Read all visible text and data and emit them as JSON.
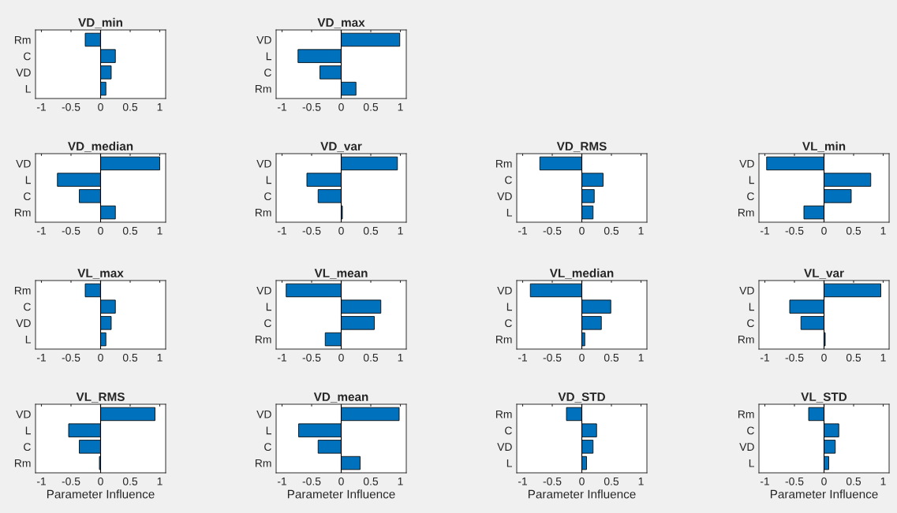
{
  "chart_data": [
    {
      "type": "bar",
      "orientation": "horizontal",
      "title": "VD_min",
      "categories": [
        "Rm",
        "C",
        "VD",
        "L"
      ],
      "values": [
        -0.26,
        0.25,
        0.18,
        0.09
      ],
      "color": "#0072bd",
      "xlim": [
        -1.1,
        1.1
      ],
      "xticks": [
        -1,
        -0.5,
        0,
        0.5,
        1
      ]
    },
    {
      "type": "bar",
      "orientation": "horizontal",
      "title": "VD_max",
      "categories": [
        "VD",
        "L",
        "C",
        "Rm"
      ],
      "values": [
        0.99,
        -0.73,
        -0.36,
        0.25
      ],
      "color": "#0072bd",
      "xlim": [
        -1.1,
        1.1
      ],
      "xticks": [
        -1,
        -0.5,
        0,
        0.5,
        1
      ]
    },
    {
      "type": "bar",
      "orientation": "horizontal",
      "title": "VD_median",
      "categories": [
        "VD",
        "L",
        "C",
        "Rm"
      ],
      "values": [
        1.0,
        -0.73,
        -0.36,
        0.25
      ],
      "color": "#0072bd",
      "xlim": [
        -1.1,
        1.1
      ],
      "xticks": [
        -1,
        -0.5,
        0,
        0.5,
        1
      ]
    },
    {
      "type": "bar",
      "orientation": "horizontal",
      "title": "VD_var",
      "categories": [
        "VD",
        "L",
        "C",
        "Rm"
      ],
      "values": [
        0.95,
        -0.58,
        -0.39,
        0.02
      ],
      "color": "#0072bd",
      "xlim": [
        -1.1,
        1.1
      ],
      "xticks": [
        -1,
        -0.5,
        0,
        0.5,
        1
      ]
    },
    {
      "type": "bar",
      "orientation": "horizontal",
      "title": "VD_RMS",
      "categories": [
        "Rm",
        "C",
        "VD",
        "L"
      ],
      "values": [
        -0.71,
        0.36,
        0.21,
        0.19
      ],
      "color": "#0072bd",
      "xlim": [
        -1.1,
        1.1
      ],
      "xticks": [
        -1,
        -0.5,
        0,
        0.5,
        1
      ]
    },
    {
      "type": "bar",
      "orientation": "horizontal",
      "title": "VL_min",
      "categories": [
        "VD",
        "L",
        "C",
        "Rm"
      ],
      "values": [
        -0.97,
        0.79,
        0.46,
        -0.34
      ],
      "color": "#0072bd",
      "xlim": [
        -1.1,
        1.1
      ],
      "xticks": [
        -1,
        -0.5,
        0,
        0.5,
        1
      ]
    },
    {
      "type": "bar",
      "orientation": "horizontal",
      "title": "VL_max",
      "categories": [
        "Rm",
        "C",
        "VD",
        "L"
      ],
      "values": [
        -0.26,
        0.25,
        0.18,
        0.09
      ],
      "color": "#0072bd",
      "xlim": [
        -1.1,
        1.1
      ],
      "xticks": [
        -1,
        -0.5,
        0,
        0.5,
        1
      ]
    },
    {
      "type": "bar",
      "orientation": "horizontal",
      "title": "VL_mean",
      "categories": [
        "VD",
        "L",
        "C",
        "Rm"
      ],
      "values": [
        -0.93,
        0.67,
        0.56,
        -0.27
      ],
      "color": "#0072bd",
      "xlim": [
        -1.1,
        1.1
      ],
      "xticks": [
        -1,
        -0.5,
        0,
        0.5,
        1
      ]
    },
    {
      "type": "bar",
      "orientation": "horizontal",
      "title": "VL_median",
      "categories": [
        "VD",
        "L",
        "C",
        "Rm"
      ],
      "values": [
        -0.87,
        0.49,
        0.33,
        0.05
      ],
      "color": "#0072bd",
      "xlim": [
        -1.1,
        1.1
      ],
      "xticks": [
        -1,
        -0.5,
        0,
        0.5,
        1
      ]
    },
    {
      "type": "bar",
      "orientation": "horizontal",
      "title": "VL_var",
      "categories": [
        "VD",
        "L",
        "C",
        "Rm"
      ],
      "values": [
        0.96,
        -0.58,
        -0.39,
        0.02
      ],
      "color": "#0072bd",
      "xlim": [
        -1.1,
        1.1
      ],
      "xticks": [
        -1,
        -0.5,
        0,
        0.5,
        1
      ]
    },
    {
      "type": "bar",
      "orientation": "horizontal",
      "title": "VL_RMS",
      "categories": [
        "VD",
        "L",
        "C",
        "Rm"
      ],
      "values": [
        0.92,
        -0.54,
        -0.36,
        -0.02
      ],
      "color": "#0072bd",
      "xlim": [
        -1.1,
        1.1
      ],
      "xticks": [
        -1,
        -0.5,
        0,
        0.5,
        1
      ],
      "xlabel": "Parameter Influence"
    },
    {
      "type": "bar",
      "orientation": "horizontal",
      "title": "VD_mean",
      "categories": [
        "VD",
        "L",
        "C",
        "Rm"
      ],
      "values": [
        0.98,
        -0.72,
        -0.39,
        0.32
      ],
      "color": "#0072bd",
      "xlim": [
        -1.1,
        1.1
      ],
      "xticks": [
        -1,
        -0.5,
        0,
        0.5,
        1
      ],
      "xlabel": "Parameter Influence"
    },
    {
      "type": "bar",
      "orientation": "horizontal",
      "title": "VD_STD",
      "categories": [
        "Rm",
        "C",
        "VD",
        "L"
      ],
      "values": [
        -0.26,
        0.25,
        0.19,
        0.08
      ],
      "color": "#0072bd",
      "xlim": [
        -1.1,
        1.1
      ],
      "xticks": [
        -1,
        -0.5,
        0,
        0.5,
        1
      ],
      "xlabel": "Parameter Influence"
    },
    {
      "type": "bar",
      "orientation": "horizontal",
      "title": "VL_STD",
      "categories": [
        "Rm",
        "C",
        "VD",
        "L"
      ],
      "values": [
        -0.26,
        0.25,
        0.19,
        0.08
      ],
      "color": "#0072bd",
      "xlim": [
        -1.1,
        1.1
      ],
      "xticks": [
        -1,
        -0.5,
        0,
        0.5,
        1
      ],
      "xlabel": "Parameter Influence"
    }
  ]
}
